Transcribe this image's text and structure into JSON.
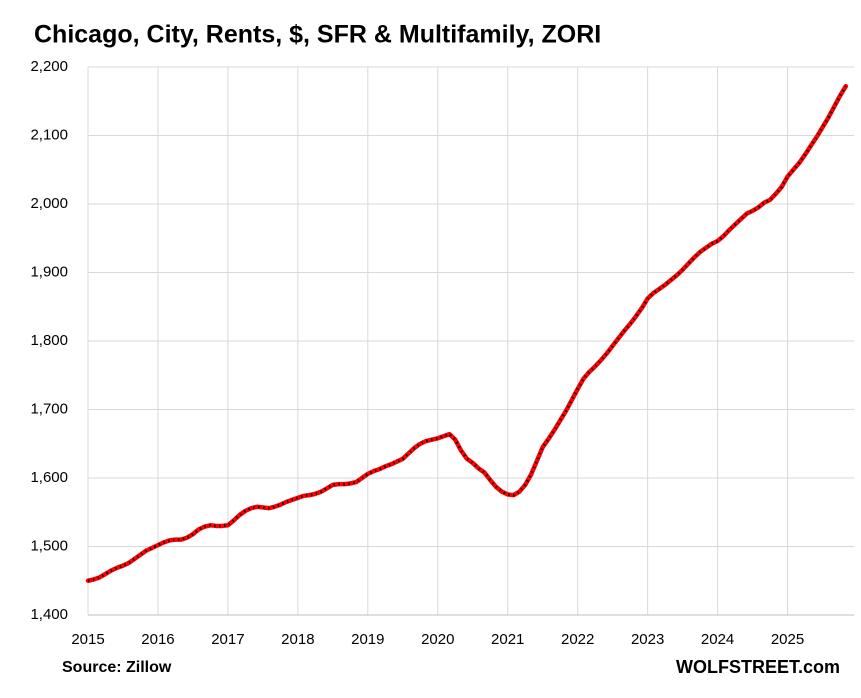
{
  "chart_data": {
    "type": "line",
    "title": "Chicago, City, Rents, $, SFR & Multifamily, ZORI",
    "source": "Source: Zillow",
    "brand": "WOLFSTREET.com",
    "x": [
      2015,
      2015.083,
      2015.167,
      2015.25,
      2015.333,
      2015.417,
      2015.5,
      2015.583,
      2015.667,
      2015.75,
      2015.833,
      2015.917,
      2016,
      2016.083,
      2016.167,
      2016.25,
      2016.333,
      2016.417,
      2016.5,
      2016.583,
      2016.667,
      2016.75,
      2016.833,
      2016.917,
      2017,
      2017.083,
      2017.167,
      2017.25,
      2017.333,
      2017.417,
      2017.5,
      2017.583,
      2017.667,
      2017.75,
      2017.833,
      2017.917,
      2018,
      2018.083,
      2018.167,
      2018.25,
      2018.333,
      2018.417,
      2018.5,
      2018.583,
      2018.667,
      2018.75,
      2018.833,
      2018.917,
      2019,
      2019.083,
      2019.167,
      2019.25,
      2019.333,
      2019.417,
      2019.5,
      2019.583,
      2019.667,
      2019.75,
      2019.833,
      2019.917,
      2020,
      2020.083,
      2020.167,
      2020.25,
      2020.333,
      2020.417,
      2020.5,
      2020.583,
      2020.667,
      2020.75,
      2020.833,
      2020.917,
      2021,
      2021.083,
      2021.167,
      2021.25,
      2021.333,
      2021.417,
      2021.5,
      2021.583,
      2021.667,
      2021.75,
      2021.833,
      2021.917,
      2022,
      2022.083,
      2022.167,
      2022.25,
      2022.333,
      2022.417,
      2022.5,
      2022.583,
      2022.667,
      2022.75,
      2022.833,
      2022.917,
      2023,
      2023.083,
      2023.167,
      2023.25,
      2023.333,
      2023.417,
      2023.5,
      2023.583,
      2023.667,
      2023.75,
      2023.833,
      2023.917,
      2024,
      2024.083,
      2024.167,
      2024.25,
      2024.333,
      2024.417,
      2024.5,
      2024.583,
      2024.667,
      2024.75,
      2024.833,
      2024.917,
      2025,
      2025.083,
      2025.167,
      2025.25,
      2025.333,
      2025.417,
      2025.5,
      2025.583,
      2025.667,
      2025.75,
      2025.833
    ],
    "series": [
      {
        "color": "#ff0000",
        "values": [
          1450,
          1452,
          1455,
          1460,
          1465,
          1469,
          1472,
          1476,
          1482,
          1488,
          1494,
          1498,
          1502,
          1506,
          1509,
          1510,
          1510,
          1513,
          1518,
          1525,
          1529,
          1531,
          1530,
          1530,
          1531,
          1538,
          1546,
          1552,
          1556,
          1558,
          1557,
          1556,
          1558,
          1561,
          1565,
          1568,
          1571,
          1574,
          1575,
          1577,
          1580,
          1585,
          1590,
          1591,
          1591,
          1592,
          1594,
          1600,
          1606,
          1610,
          1613,
          1617,
          1620,
          1624,
          1628,
          1636,
          1644,
          1650,
          1654,
          1656,
          1658,
          1661,
          1664,
          1656,
          1640,
          1628,
          1622,
          1614,
          1608,
          1597,
          1587,
          1580,
          1576,
          1575,
          1580,
          1590,
          1605,
          1625,
          1645,
          1657,
          1670,
          1684,
          1698,
          1714,
          1730,
          1745,
          1755,
          1763,
          1772,
          1782,
          1793,
          1804,
          1815,
          1825,
          1836,
          1848,
          1862,
          1870,
          1876,
          1882,
          1889,
          1896,
          1904,
          1913,
          1922,
          1930,
          1936,
          1942,
          1946,
          1953,
          1962,
          1970,
          1978,
          1986,
          1990,
          1995,
          2002,
          2006,
          2015,
          2025,
          2040,
          2050,
          2060,
          2072,
          2085,
          2098,
          2112,
          2126,
          2142,
          2158,
          2172
        ]
      }
    ],
    "xlim": [
      2015,
      2025.95
    ],
    "xticks": [
      2015,
      2016,
      2017,
      2018,
      2019,
      2020,
      2021,
      2022,
      2023,
      2024,
      2025
    ],
    "ylim": [
      1400,
      2200
    ],
    "yticks": [
      {
        "value": 1400,
        "label": "1,400"
      },
      {
        "value": 1500,
        "label": "1,500"
      },
      {
        "value": 1600,
        "label": "1,600"
      },
      {
        "value": 1700,
        "label": "1,700"
      },
      {
        "value": 1800,
        "label": "1,800"
      },
      {
        "value": 1900,
        "label": "1,900"
      },
      {
        "value": 2000,
        "label": "2,000"
      },
      {
        "value": 2100,
        "label": "2,100"
      },
      {
        "value": 2200,
        "label": "2,200"
      }
    ],
    "grid": true
  }
}
